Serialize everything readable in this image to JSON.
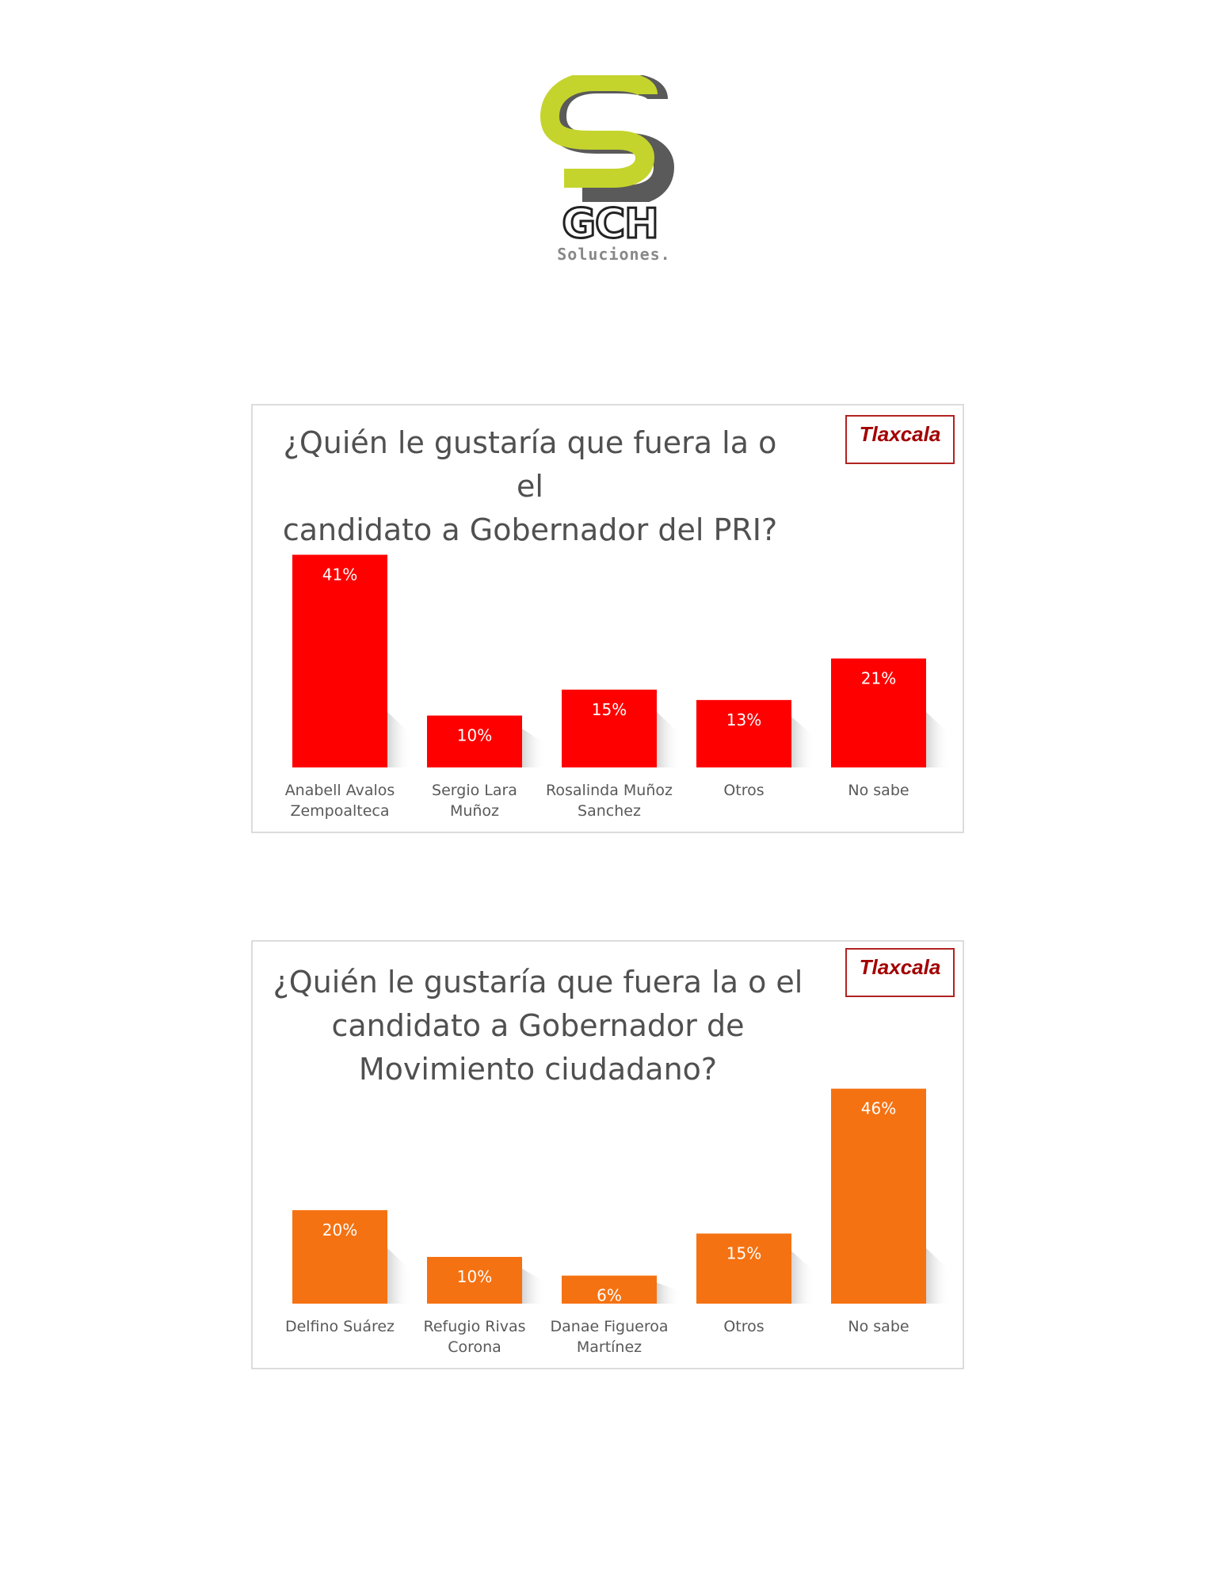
{
  "logo": {
    "brand": "GCH",
    "tagline": "Soluciones.",
    "colors": {
      "primary": "#c4d42c",
      "secondary": "#5a5a5a"
    }
  },
  "charts": [
    {
      "region_badge": "Tlaxcala",
      "title_lines": [
        "¿Quién le gustaría que fuera la o el",
        "candidato a Gobernador del PRI?"
      ]
    },
    {
      "region_badge": "Tlaxcala",
      "title_lines": [
        "¿Quién le gustaría que fuera la o el",
        "candidato a Gobernador de",
        "Movimiento ciudadano?"
      ]
    }
  ],
  "chart_data": [
    {
      "type": "bar",
      "title": "¿Quién le gustaría que fuera la o el candidato a Gobernador del PRI?",
      "categories": [
        [
          "Anabell Avalos",
          "Zempoalteca"
        ],
        [
          "Sergio Lara",
          "Muñoz"
        ],
        [
          "Rosalinda Muñoz",
          "Sanchez"
        ],
        [
          "Otros"
        ],
        [
          "No sabe"
        ]
      ],
      "values": [
        41,
        10,
        15,
        13,
        21
      ],
      "value_labels": [
        "41%",
        "10%",
        "15%",
        "13%",
        "21%"
      ],
      "unit": "%",
      "color": "#ff0000",
      "ylim": [
        0,
        46
      ],
      "grid": false,
      "legend": "none"
    },
    {
      "type": "bar",
      "title": "¿Quién le gustaría que fuera la o el candidato a Gobernador de Movimiento ciudadano?",
      "categories": [
        [
          "Delfino Suárez"
        ],
        [
          "Refugio Rivas",
          "Corona"
        ],
        [
          "Danae Figueroa",
          "Martínez"
        ],
        [
          "Otros"
        ],
        [
          "No sabe"
        ]
      ],
      "values": [
        20,
        10,
        6,
        15,
        46
      ],
      "value_labels": [
        "20%",
        "10%",
        "6%",
        "15%",
        "46%"
      ],
      "unit": "%",
      "color": "#f57212",
      "ylim": [
        0,
        46
      ],
      "grid": false,
      "legend": "none"
    }
  ]
}
